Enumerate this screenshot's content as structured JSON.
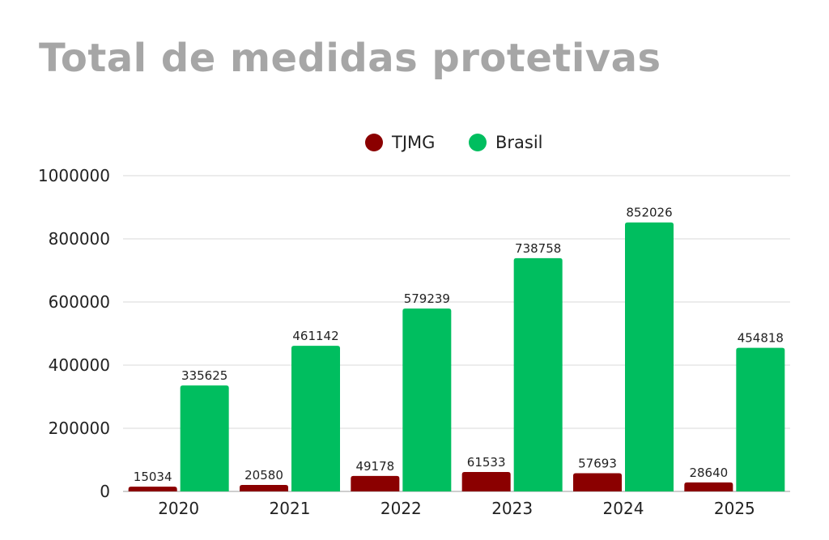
{
  "chart_data": {
    "type": "bar",
    "title": "Total de medidas protetivas",
    "categories": [
      "2020",
      "2021",
      "2022",
      "2023",
      "2024",
      "2025"
    ],
    "series": [
      {
        "name": "TJMG",
        "color": "#8b0000",
        "values": [
          15034,
          20580,
          49178,
          61533,
          57693,
          28640
        ]
      },
      {
        "name": "Brasil",
        "color": "#00be5f",
        "values": [
          335625,
          461142,
          579239,
          738758,
          852026,
          454818
        ]
      }
    ],
    "ylim": [
      0,
      1000000
    ],
    "yticks": [
      "0",
      "200000",
      "400000",
      "600000",
      "800000",
      "1000000"
    ],
    "ytick_values": [
      0,
      200000,
      400000,
      600000,
      800000,
      1000000
    ],
    "xlabel": "",
    "ylabel": "",
    "grid": true,
    "legend": "top-center"
  }
}
